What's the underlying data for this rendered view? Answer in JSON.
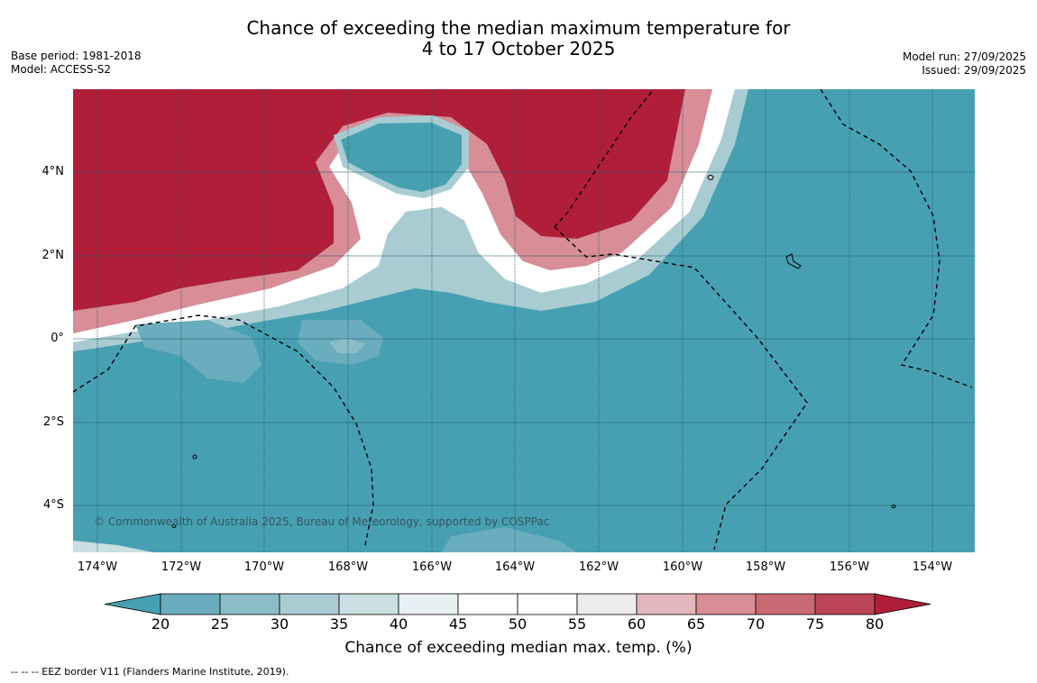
{
  "title_line1": "Chance of exceeding the median maximum temperature for",
  "title_line2": "4 to 17 October 2025",
  "base_period": "Base period: 1981-2018",
  "model": "Model: ACCESS-S2",
  "model_run": "Model run: 27/09/2025",
  "issued": "Issued: 29/09/2025",
  "copyright": "© Commonwealth of Australia 2025, Bureau of Meteorology, supported by COSPPac",
  "lat_labels": [
    "4°N",
    "2°N",
    "0°",
    "2°S",
    "4°S"
  ],
  "lon_labels": [
    "174°W",
    "172°W",
    "170°W",
    "168°W",
    "166°W",
    "164°W",
    "162°W",
    "160°W",
    "158°W",
    "156°W",
    "154°W"
  ],
  "colorbar": {
    "ticks": [
      "20",
      "25",
      "30",
      "35",
      "40",
      "45",
      "50",
      "55",
      "60",
      "65",
      "70",
      "75",
      "80"
    ],
    "colors": [
      "#47a0b2",
      "#6aadbe",
      "#8bbdc8",
      "#a9ccd2",
      "#c9dfe1",
      "#e8f1f2",
      "#ffffff",
      "#ffffff",
      "#ececec",
      "#e3b7bd",
      "#d98d96",
      "#c96974",
      "#bb4556",
      "#b11e3a"
    ],
    "label": "Chance of exceeding median max. temp. (%)"
  },
  "footnote": "--  --  -- EEZ border V11 (Flanders Marine Institute, 2019)."
}
